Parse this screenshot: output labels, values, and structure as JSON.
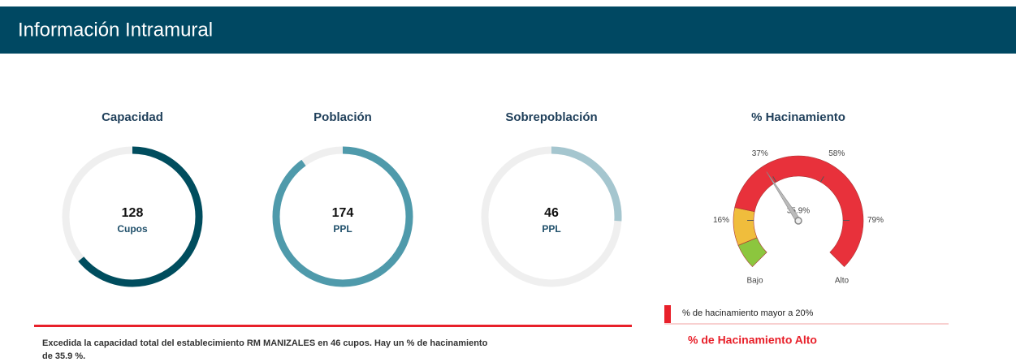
{
  "header": {
    "title": "Información Intramural"
  },
  "gauges": [
    {
      "title": "Capacidad",
      "value": 128,
      "unit": "Cupos",
      "progress": 0.64,
      "color": "#004d5e"
    },
    {
      "title": "Población",
      "value": 174,
      "unit": "PPL",
      "progress": 0.9,
      "color": "#4f9aab"
    },
    {
      "title": "Sobrepoblación",
      "value": 46,
      "unit": "PPL",
      "progress": 0.26,
      "color": "#a5c6cf"
    }
  ],
  "hacinamiento": {
    "title": "% Hacinamiento",
    "value": 35.9,
    "value_label": "35.9%",
    "lim": [
      0,
      95
    ],
    "ticks": [
      {
        "value": 16,
        "label": "16%"
      },
      {
        "value": 37,
        "label": "37%"
      },
      {
        "value": 58,
        "label": "58%"
      },
      {
        "value": 79,
        "label": "79%"
      }
    ],
    "low_label": "Bajo",
    "high_label": "Alto",
    "bands": [
      {
        "from": 0,
        "to": 8,
        "color": "#8cc63e"
      },
      {
        "from": 8,
        "to": 20,
        "color": "#f0bd3c"
      },
      {
        "from": 20,
        "to": 95,
        "color": "#e8313b"
      }
    ]
  },
  "legend": {
    "label": "% de hacinamiento mayor a 20%",
    "status": "% de Hacinamiento Alto"
  },
  "message": [
    "Excedida la capacidad total del establecimiento RM MANIZALES en 46 cupos.  Hay un % de hacinamiento",
    "de 35.9 %."
  ]
}
